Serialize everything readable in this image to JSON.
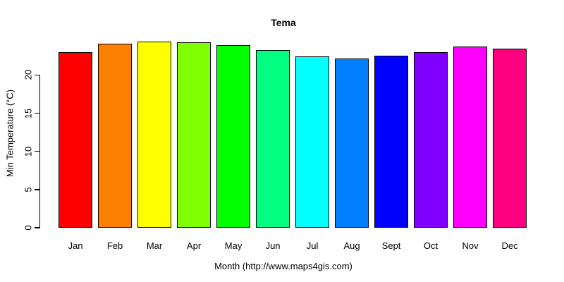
{
  "chart_data": {
    "type": "bar",
    "title": "Tema",
    "xlabel": "Month (http://www.maps4gis.com)",
    "ylabel": "Min Temperature (°C)",
    "categories": [
      "Jan",
      "Feb",
      "Mar",
      "Apr",
      "May",
      "Jun",
      "Jul",
      "Aug",
      "Sept",
      "Oct",
      "Nov",
      "Dec"
    ],
    "values": [
      23.0,
      24.1,
      24.4,
      24.3,
      23.9,
      23.3,
      22.4,
      22.2,
      22.5,
      23.0,
      23.7,
      23.5
    ],
    "bar_colors": [
      "#FF0000",
      "#FF8000",
      "#FFFF00",
      "#80FF00",
      "#00FF00",
      "#00FF80",
      "#00FFFF",
      "#0080FF",
      "#0000FF",
      "#8000FF",
      "#FF00FF",
      "#FF0080"
    ],
    "bar_border_color": "#000000",
    "yticks": [
      0,
      5,
      10,
      15,
      20
    ],
    "ylim": [
      0,
      24.75
    ],
    "grid": false,
    "legend": null,
    "background": "#FFFFFF",
    "axis_color": "#000000"
  }
}
